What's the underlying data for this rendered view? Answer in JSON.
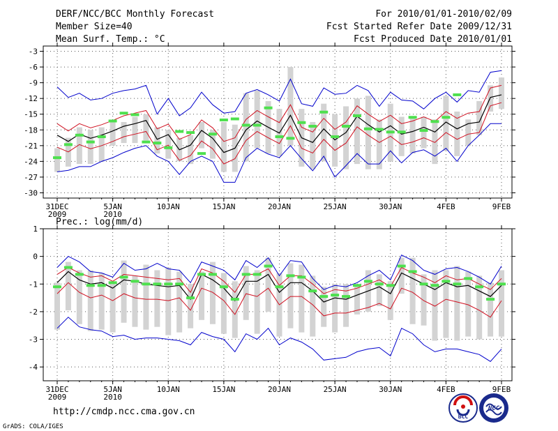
{
  "header": {
    "title": "DERF/NCC/BCC Monthly Forecast",
    "member_size": "Member Size=40",
    "variable_temp": "Mean Surf. Temp.: °C",
    "period": "For 2010/01/01-2010/02/09",
    "fcst_started": "Fcst Started Refer Date 2009/12/31",
    "fcst_produced": "Fcst Produced Date 2010/01/01"
  },
  "footer": {
    "url": "http://cmdp.ncc.cma.gov.cn",
    "grads": "GrADS: COLA/IGES",
    "logo_bcc_text": "BCC",
    "logo_ncc_text": "NCC"
  },
  "colors": {
    "box": "#d3d3d3",
    "observed": "#4ee04e",
    "ensemble_mean": "#000000",
    "std_band": "#d01020",
    "envelope": "#0000cc",
    "gridline": "#555555"
  },
  "chart_data": [
    {
      "type": "line",
      "title": "Mean Surf. Temp.: °C",
      "ylim": [
        -31,
        -2
      ],
      "yticks": [
        -3,
        -6,
        -9,
        -12,
        -15,
        -18,
        -21,
        -24,
        -27,
        -30
      ],
      "day_count": 40,
      "xticks": [
        {
          "day": 0,
          "label": "31DEC",
          "sub": "2009"
        },
        {
          "day": 5,
          "label": "5JAN",
          "sub": "2010"
        },
        {
          "day": 10,
          "label": "10JAN",
          "sub": ""
        },
        {
          "day": 15,
          "label": "15JAN",
          "sub": ""
        },
        {
          "day": 20,
          "label": "20JAN",
          "sub": ""
        },
        {
          "day": 25,
          "label": "25JAN",
          "sub": ""
        },
        {
          "day": 30,
          "label": "30JAN",
          "sub": ""
        },
        {
          "day": 35,
          "label": "4FEB",
          "sub": ""
        },
        {
          "day": 40,
          "label": "9FEB",
          "sub": ""
        }
      ],
      "series": [
        {
          "name": "ensemble_mean",
          "values": [
            -19.0,
            -20.2,
            -18.8,
            -19.6,
            -19.0,
            -18.2,
            -17.3,
            -16.8,
            -16.2,
            -19.8,
            -18.9,
            -21.8,
            -20.9,
            -18.1,
            -19.6,
            -22.3,
            -21.5,
            -18.0,
            -16.3,
            -17.5,
            -18.6,
            -15.2,
            -19.5,
            -20.4,
            -17.8,
            -19.9,
            -18.5,
            -15.4,
            -17.0,
            -18.4,
            -17.2,
            -18.8,
            -18.3,
            -17.5,
            -18.4,
            -16.5,
            -17.8,
            -16.8,
            -16.5,
            -11.8,
            -11.3
          ]
        },
        {
          "name": "std_upper",
          "values": [
            -16.8,
            -18.2,
            -16.8,
            -17.6,
            -17.0,
            -16.2,
            -15.3,
            -14.8,
            -14.3,
            -17.8,
            -16.9,
            -19.8,
            -18.9,
            -16.1,
            -17.6,
            -20.2,
            -19.5,
            -16.0,
            -14.3,
            -15.5,
            -16.6,
            -13.2,
            -17.5,
            -18.4,
            -15.8,
            -17.9,
            -16.5,
            -13.4,
            -15.0,
            -16.4,
            -15.2,
            -16.8,
            -16.3,
            -15.5,
            -16.4,
            -14.5,
            -15.8,
            -14.8,
            -14.5,
            -10.0,
            -9.5
          ]
        },
        {
          "name": "std_lower",
          "values": [
            -21.3,
            -22.2,
            -20.8,
            -21.6,
            -21.0,
            -20.2,
            -19.3,
            -18.8,
            -18.3,
            -21.8,
            -20.9,
            -23.8,
            -22.9,
            -20.1,
            -21.6,
            -24.5,
            -23.5,
            -20.0,
            -18.3,
            -19.5,
            -20.6,
            -17.2,
            -21.5,
            -22.4,
            -19.8,
            -21.9,
            -20.5,
            -17.4,
            -19.0,
            -20.4,
            -19.2,
            -20.8,
            -20.3,
            -19.5,
            -20.4,
            -18.5,
            -19.8,
            -18.8,
            -18.5,
            -13.4,
            -12.8
          ]
        },
        {
          "name": "max_envelope",
          "values": [
            -9.8,
            -11.8,
            -11.0,
            -12.3,
            -12.0,
            -11.0,
            -10.5,
            -10.2,
            -9.5,
            -15.0,
            -12.0,
            -15.3,
            -13.8,
            -10.8,
            -13.2,
            -14.8,
            -14.5,
            -11.0,
            -10.3,
            -11.3,
            -12.5,
            -8.3,
            -13.0,
            -13.5,
            -10.0,
            -11.2,
            -11.0,
            -9.5,
            -10.5,
            -13.5,
            -10.8,
            -12.3,
            -12.5,
            -14.0,
            -12.0,
            -10.8,
            -12.7,
            -10.5,
            -10.8,
            -7.0,
            -6.7
          ]
        },
        {
          "name": "min_envelope",
          "values": [
            -26.0,
            -25.7,
            -25.0,
            -25.0,
            -24.0,
            -23.3,
            -22.3,
            -21.5,
            -21.0,
            -23.0,
            -24.0,
            -26.5,
            -24.0,
            -23.0,
            -24.0,
            -28.0,
            -28.0,
            -23.3,
            -21.5,
            -22.6,
            -23.3,
            -21.0,
            -23.5,
            -25.8,
            -23.0,
            -27.0,
            -24.8,
            -22.5,
            -24.5,
            -24.5,
            -22.0,
            -24.3,
            -22.3,
            -21.8,
            -23.0,
            -21.5,
            -24.0,
            -21.0,
            -19.0,
            -16.8,
            -16.8
          ]
        },
        {
          "name": "box_upper",
          "values": [
            -21.5,
            -19.5,
            -17.5,
            -18.0,
            -17.5,
            -16.5,
            -16.5,
            -15.5,
            -15.0,
            -17.5,
            -18.0,
            -19.5,
            -19.0,
            -16.5,
            -18.0,
            -16.5,
            -17.0,
            -11.0,
            -10.5,
            -12.5,
            -14.0,
            -6.0,
            -14.0,
            -16.5,
            -13.0,
            -15.0,
            -13.5,
            -12.0,
            -11.5,
            -16.0,
            -13.0,
            -15.5,
            -15.5,
            -15.5,
            -16.0,
            -11.5,
            -14.5,
            -16.0,
            -12.5,
            -9.5,
            -8.0
          ]
        },
        {
          "name": "box_lower",
          "values": [
            -26.0,
            -25.0,
            -24.5,
            -24.5,
            -24.0,
            -21.0,
            -20.5,
            -20.5,
            -20.0,
            -22.5,
            -23.5,
            -24.0,
            -24.5,
            -21.5,
            -23.5,
            -26.0,
            -26.0,
            -24.0,
            -21.5,
            -22.5,
            -23.0,
            -21.0,
            -25.0,
            -25.5,
            -24.0,
            -25.0,
            -25.5,
            -24.5,
            -25.5,
            -25.5,
            -24.0,
            -23.0,
            -22.5,
            -21.5,
            -24.5,
            -22.0,
            -23.0,
            -21.0,
            -19.0,
            -14.5,
            -14.0
          ]
        },
        {
          "name": "observed",
          "values": [
            -23.3,
            -20.8,
            -19.0,
            -20.3,
            -19.3,
            -16.3,
            -14.8,
            -15.1,
            -20.3,
            -20.5,
            -21.4,
            -18.3,
            -18.5,
            -22.5,
            -18.8,
            -16.1,
            -15.9,
            -17.1,
            -17.1,
            -13.8,
            -19.3,
            -19.6,
            -16.6,
            -17.3,
            -14.6,
            -19.3,
            -17.3,
            -15.3,
            -17.8,
            -17.9,
            -18.4,
            -18.4,
            -15.6,
            -18.1,
            -16.4,
            -15.6,
            -11.3
          ]
        }
      ]
    },
    {
      "type": "line",
      "title": "Prec.: log(mm/d)",
      "ylim": [
        -4.5,
        1
      ],
      "yticks": [
        1,
        0,
        -1,
        -2,
        -3,
        -4
      ],
      "day_count": 40,
      "xticks": [
        {
          "day": 0,
          "label": "31DEC",
          "sub": "2009"
        },
        {
          "day": 5,
          "label": "5JAN",
          "sub": "2010"
        },
        {
          "day": 10,
          "label": "10JAN",
          "sub": ""
        },
        {
          "day": 15,
          "label": "15JAN",
          "sub": ""
        },
        {
          "day": 20,
          "label": "20JAN",
          "sub": ""
        },
        {
          "day": 25,
          "label": "25JAN",
          "sub": ""
        },
        {
          "day": 30,
          "label": "30JAN",
          "sub": ""
        },
        {
          "day": 35,
          "label": "4FEB",
          "sub": ""
        },
        {
          "day": 40,
          "label": "9FEB",
          "sub": ""
        }
      ],
      "series": [
        {
          "name": "ensemble_mean",
          "values": [
            -0.95,
            -0.55,
            -0.85,
            -1.0,
            -0.95,
            -1.15,
            -0.85,
            -0.9,
            -1.0,
            -1.05,
            -1.1,
            -1.05,
            -1.55,
            -0.65,
            -0.85,
            -1.15,
            -1.6,
            -0.9,
            -0.9,
            -0.65,
            -1.3,
            -0.95,
            -0.95,
            -1.25,
            -1.65,
            -1.5,
            -1.55,
            -1.4,
            -1.25,
            -1.1,
            -1.35,
            -0.6,
            -0.8,
            -1.0,
            -1.2,
            -0.95,
            -1.1,
            -1.05,
            -1.25,
            -1.45,
            -1.05
          ]
        },
        {
          "name": "std_upper",
          "values": [
            -0.65,
            -0.4,
            -0.6,
            -0.75,
            -0.7,
            -0.9,
            -0.65,
            -0.7,
            -0.75,
            -0.8,
            -0.85,
            -0.8,
            -1.3,
            -0.45,
            -0.6,
            -0.9,
            -1.3,
            -0.65,
            -0.65,
            -0.45,
            -1.05,
            -0.7,
            -0.7,
            -1.0,
            -1.35,
            -1.2,
            -1.25,
            -1.15,
            -1.0,
            -0.85,
            -1.1,
            -0.4,
            -0.6,
            -0.75,
            -0.95,
            -0.7,
            -0.85,
            -0.8,
            -1.0,
            -1.2,
            -0.8
          ]
        },
        {
          "name": "std_lower",
          "values": [
            -1.35,
            -0.95,
            -1.3,
            -1.5,
            -1.4,
            -1.6,
            -1.35,
            -1.5,
            -1.55,
            -1.55,
            -1.6,
            -1.5,
            -1.95,
            -1.15,
            -1.3,
            -1.6,
            -2.1,
            -1.35,
            -1.45,
            -1.15,
            -1.75,
            -1.45,
            -1.45,
            -1.75,
            -2.15,
            -2.05,
            -2.05,
            -1.95,
            -1.85,
            -1.7,
            -1.9,
            -1.15,
            -1.3,
            -1.6,
            -1.8,
            -1.55,
            -1.65,
            -1.75,
            -1.95,
            -2.2,
            -1.6
          ]
        },
        {
          "name": "max_envelope",
          "values": [
            -0.4,
            0.0,
            -0.2,
            -0.55,
            -0.6,
            -0.75,
            -0.25,
            -0.5,
            -0.45,
            -0.25,
            -0.45,
            -0.5,
            -0.95,
            -0.2,
            -0.35,
            -0.5,
            -0.85,
            -0.15,
            -0.4,
            -0.05,
            -0.7,
            -0.15,
            -0.2,
            -0.8,
            -1.2,
            -1.05,
            -1.1,
            -0.95,
            -0.7,
            -0.5,
            -0.85,
            0.05,
            -0.15,
            -0.5,
            -0.65,
            -0.45,
            -0.4,
            -0.55,
            -0.75,
            -1.0,
            -0.35
          ]
        },
        {
          "name": "min_envelope",
          "values": [
            -2.6,
            -2.2,
            -2.55,
            -2.65,
            -2.7,
            -2.9,
            -2.85,
            -3.0,
            -2.95,
            -2.95,
            -3.0,
            -3.05,
            -3.2,
            -2.75,
            -2.9,
            -3.0,
            -3.45,
            -2.8,
            -3.0,
            -2.6,
            -3.2,
            -2.95,
            -3.1,
            -3.35,
            -3.75,
            -3.7,
            -3.65,
            -3.45,
            -3.35,
            -3.3,
            -3.6,
            -2.6,
            -2.8,
            -3.2,
            -3.45,
            -3.35,
            -3.35,
            -3.45,
            -3.55,
            -3.8,
            -3.35
          ]
        },
        {
          "name": "box_upper",
          "values": [
            -0.95,
            -0.2,
            -0.5,
            -0.5,
            -0.6,
            -1.0,
            -0.15,
            -0.7,
            -0.3,
            -0.5,
            -0.4,
            -0.55,
            -1.0,
            -0.55,
            -0.2,
            -0.6,
            -0.9,
            -0.35,
            -0.5,
            -0.05,
            -0.6,
            -0.25,
            -0.3,
            -0.7,
            -1.1,
            -1.0,
            -1.0,
            -1.0,
            -0.5,
            -0.65,
            -0.9,
            -0.05,
            -0.05,
            -0.65,
            -0.5,
            -0.5,
            -0.35,
            -0.55,
            -0.7,
            -0.95,
            -0.5
          ]
        },
        {
          "name": "box_lower",
          "values": [
            -2.65,
            -1.95,
            -2.45,
            -2.7,
            -2.65,
            -2.75,
            -2.4,
            -2.55,
            -2.65,
            -2.55,
            -2.85,
            -2.75,
            -2.6,
            -2.3,
            -2.45,
            -2.8,
            -2.95,
            -2.3,
            -2.8,
            -2.0,
            -2.9,
            -2.6,
            -2.75,
            -2.9,
            -2.55,
            -2.75,
            -2.55,
            -2.1,
            -2.0,
            -1.8,
            -2.3,
            -1.35,
            -2.45,
            -2.5,
            -3.05,
            -2.95,
            -3.05,
            -2.9,
            -3.0,
            -2.9,
            -2.9
          ]
        },
        {
          "name": "observed",
          "values": [
            -1.1,
            -0.4,
            -0.65,
            -1.05,
            -1.05,
            -0.95,
            -0.75,
            -0.9,
            -1.0,
            -1.0,
            -1.0,
            -1.0,
            -1.5,
            -0.65,
            -0.65,
            -1.1,
            -1.55,
            -0.65,
            -0.65,
            -0.35,
            -1.1,
            -0.7,
            -0.75,
            -1.25,
            -1.45,
            -1.4,
            -1.45,
            -1.05,
            -0.9,
            -1.0,
            -1.05,
            -0.35,
            -0.55,
            -1.0,
            -1.05,
            -0.9,
            -1.0,
            -0.8,
            -1.1,
            -1.55,
            -1.0
          ]
        }
      ]
    }
  ]
}
